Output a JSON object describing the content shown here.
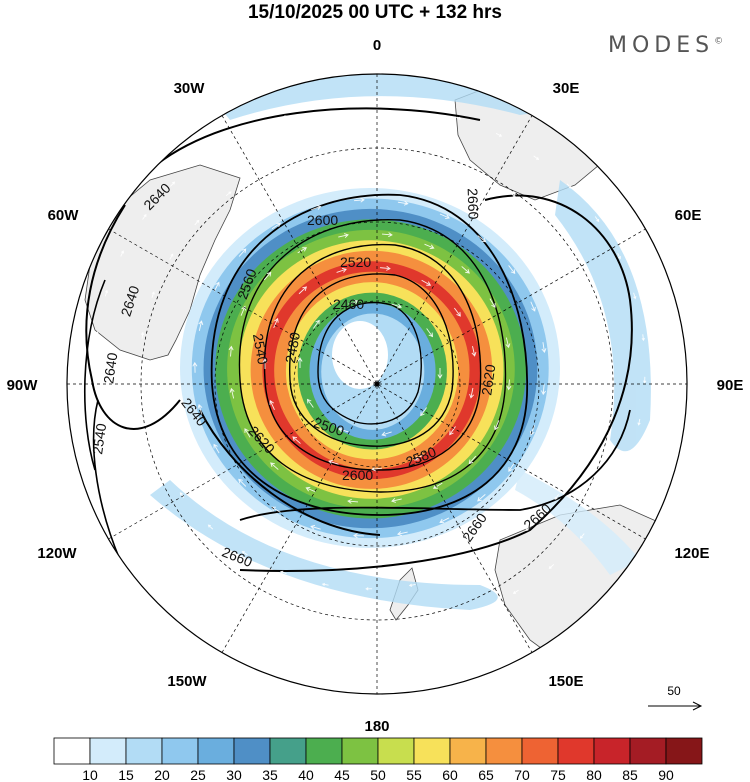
{
  "title": "15/10/2025  00 UTC  + 132 hrs",
  "brand": "MODES",
  "brand_mark": "©",
  "longitude_labels": {
    "lon_0": "0",
    "lon_30e": "30E",
    "lon_60e": "60E",
    "lon_90e": "90E",
    "lon_120e": "120E",
    "lon_150e": "150E",
    "lon_180": "180",
    "lon_150w": "150W",
    "lon_120w": "120W",
    "lon_90w": "90W",
    "lon_60w": "60W",
    "lon_30w": "30W"
  },
  "contour_labels": {
    "c2460": "2460",
    "c2480": "2480",
    "c2500": "2500",
    "c2520": "2520",
    "c2540": "2540",
    "c2560": "2560",
    "c2580": "2580",
    "c2600a": "2600",
    "c2600b": "2600",
    "c2620a": "2620",
    "c2620b": "2620",
    "c2640a": "2640",
    "c2640b": "2640",
    "c2640c": "2640",
    "c2640d": "2640",
    "c2540w": "2540",
    "c2660a": "2660",
    "c2660b": "2660",
    "c2660c": "2660",
    "c2660d": "2660"
  },
  "vector_reference": {
    "value": "50"
  },
  "colorbar": {
    "labels": [
      "10",
      "15",
      "20",
      "25",
      "30",
      "35",
      "40",
      "45",
      "50",
      "55",
      "60",
      "65",
      "70",
      "75",
      "80",
      "85",
      "90"
    ],
    "colors": [
      "#ffffff",
      "#d3ecfb",
      "#b2dcf5",
      "#8fc8ee",
      "#6aaede",
      "#4f8fc6",
      "#45a08a",
      "#4cae4f",
      "#7dc242",
      "#c8de4e",
      "#f7e15a",
      "#f7b34a",
      "#f58f3e",
      "#ee6333",
      "#e0382c",
      "#c8242a",
      "#a41c24",
      "#861618"
    ]
  },
  "colors": {
    "land": "#eeeeee",
    "ring_bands": [
      "#d3ecfb",
      "#8fc8ee",
      "#4f8fc6",
      "#4cae4f",
      "#7dc242",
      "#f7e15a",
      "#f58f3e",
      "#e0382c",
      "#f58f3e",
      "#f7e15a",
      "#4cae4f",
      "#6aaede",
      "#b2dcf5"
    ]
  }
}
